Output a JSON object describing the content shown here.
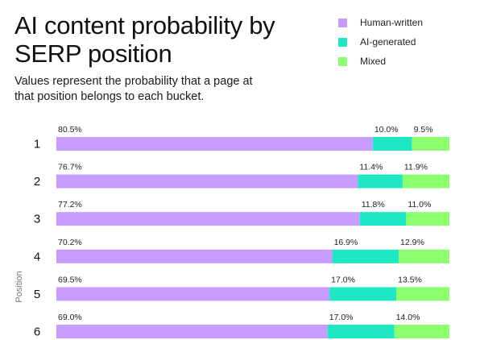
{
  "title": "AI content probability by SERP position",
  "subtitle": "Values represent the probability that a page at that position belongs to each bucket.",
  "legend": [
    {
      "label": "Human-written",
      "color": "#c89cff"
    },
    {
      "label": "AI-generated",
      "color": "#1ee8c3"
    },
    {
      "label": "Mixed",
      "color": "#8cff6e"
    }
  ],
  "chart_data": {
    "type": "bar",
    "orientation": "horizontal",
    "stacked": true,
    "ylabel": "Position",
    "categories": [
      "1",
      "2",
      "3",
      "4",
      "5",
      "6"
    ],
    "series": [
      {
        "name": "Human-written",
        "color": "#c89cff",
        "values": [
          80.5,
          76.7,
          77.2,
          70.2,
          69.5,
          69.0
        ]
      },
      {
        "name": "AI-generated",
        "color": "#1ee8c3",
        "values": [
          10.0,
          11.4,
          11.8,
          16.9,
          17.0,
          17.0
        ]
      },
      {
        "name": "Mixed",
        "color": "#8cff6e",
        "values": [
          9.5,
          11.9,
          11.0,
          12.9,
          13.5,
          14.0
        ]
      }
    ],
    "data_labels": [
      [
        "80.5%",
        "10.0%",
        "9.5%"
      ],
      [
        "76.7%",
        "11.4%",
        "11.9%"
      ],
      [
        "77.2%",
        "11.8%",
        "11.0%"
      ],
      [
        "70.2%",
        "16.9%",
        "12.9%"
      ],
      [
        "69.5%",
        "17.0%",
        "13.5%"
      ],
      [
        "69.0%",
        "17.0%",
        "14.0%"
      ]
    ],
    "xlim": [
      0,
      100
    ]
  }
}
